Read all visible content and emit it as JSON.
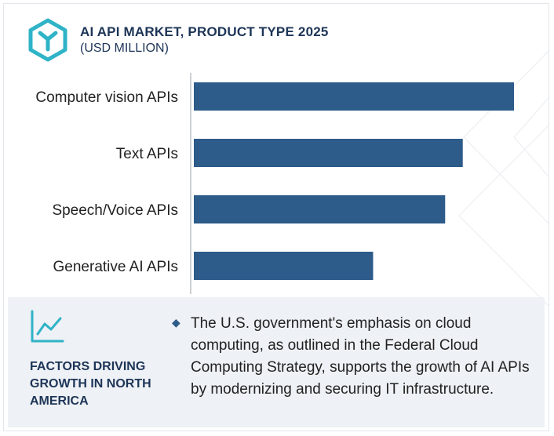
{
  "header": {
    "title": "AI API MARKET, PRODUCT TYPE 2025",
    "subtitle": "(USD MILLION)",
    "logo_icon": "cube-icon",
    "accent_color": "#2fb3c7"
  },
  "chart_data": {
    "type": "bar",
    "orientation": "horizontal",
    "categories": [
      "Computer vision APIs",
      "Text APIs",
      "Speech/Voice APIs",
      "Generative AI APIs"
    ],
    "values": [
      100,
      84,
      78.5,
      56
    ],
    "bar_color": "#2d5b8a",
    "grid": false,
    "legend": "none"
  },
  "footer": {
    "icon": "trend-line-icon",
    "heading": "FACTORS DRIVING GROWTH IN NORTH AMERICA",
    "bullet_icon": "diamond-bullet-icon",
    "text": "The U.S. government's emphasis on cloud computing, as outlined in the Federal Cloud Computing Strategy, supports the growth of AI APIs by modernizing and securing IT infrastructure."
  }
}
